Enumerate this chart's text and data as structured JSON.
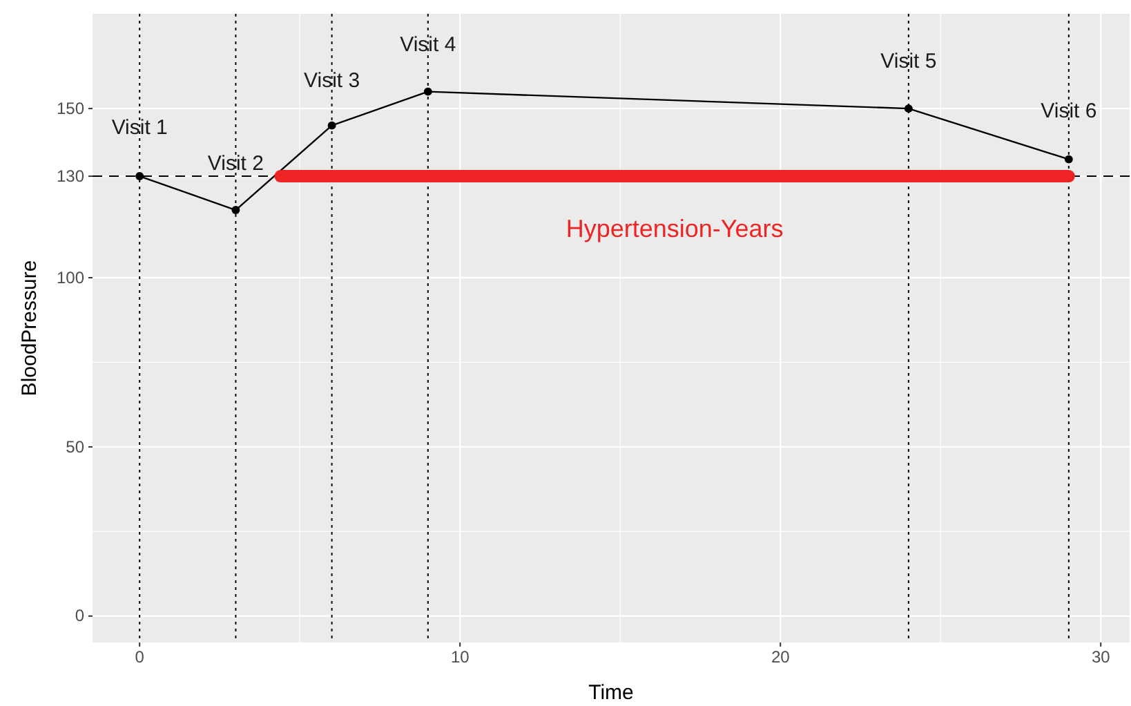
{
  "chart_data": {
    "type": "line",
    "xlabel": "Time",
    "ylabel": "BloodPressure",
    "xlim": [
      -1.47,
      30.9
    ],
    "ylim": [
      -7.8,
      178
    ],
    "xticks": [
      0,
      {
        "value": 5,
        "label": null
      },
      10,
      {
        "value": 15,
        "label": null
      },
      20,
      {
        "value": 25,
        "label": null
      },
      30
    ],
    "yticks": [
      0,
      {
        "value": 25,
        "label": null
      },
      50,
      {
        "value": 75,
        "label": null
      },
      100,
      130,
      150
    ],
    "grid": true,
    "series": [
      {
        "color": "#000000",
        "marker": "circle",
        "line_style": "solid",
        "x": [
          0,
          3,
          6,
          9,
          24,
          29
        ],
        "values": [
          130,
          120,
          145,
          155,
          150,
          135
        ]
      },
      {
        "color": "#ee2424",
        "marker": "none",
        "line_style": "solid",
        "x": [
          4.4,
          29
        ],
        "values": [
          130,
          130
        ]
      }
    ],
    "ref_lines": [
      {
        "axis": "y",
        "value": 130,
        "label": null,
        "color": "#000000",
        "line_style": "dashed"
      },
      {
        "axis": "x",
        "value": 0,
        "label": null,
        "color": "#000000",
        "line_style": "dotted"
      },
      {
        "axis": "x",
        "value": 3,
        "label": null,
        "color": "#000000",
        "line_style": "dotted"
      },
      {
        "axis": "x",
        "value": 6,
        "label": null,
        "color": "#000000",
        "line_style": "dotted"
      },
      {
        "axis": "x",
        "value": 9,
        "label": null,
        "color": "#000000",
        "line_style": "dotted"
      },
      {
        "axis": "x",
        "value": 24,
        "label": null,
        "color": "#000000",
        "line_style": "dotted"
      },
      {
        "axis": "x",
        "value": 29,
        "label": null,
        "color": "#000000",
        "line_style": "dotted"
      }
    ],
    "annotations": [
      {
        "text": "Visit 1",
        "x": 0,
        "y": 144
      },
      {
        "text": "Visit 2",
        "x": 3,
        "y": 133.5
      },
      {
        "text": "Visit 3",
        "x": 6,
        "y": 158
      },
      {
        "text": "Visit 4",
        "x": 9,
        "y": 168.6
      },
      {
        "text": "Visit 5",
        "x": 24,
        "y": 163.7
      },
      {
        "text": "Visit 6",
        "x": 29,
        "y": 149
      },
      "Hypertension-Years"
    ]
  }
}
